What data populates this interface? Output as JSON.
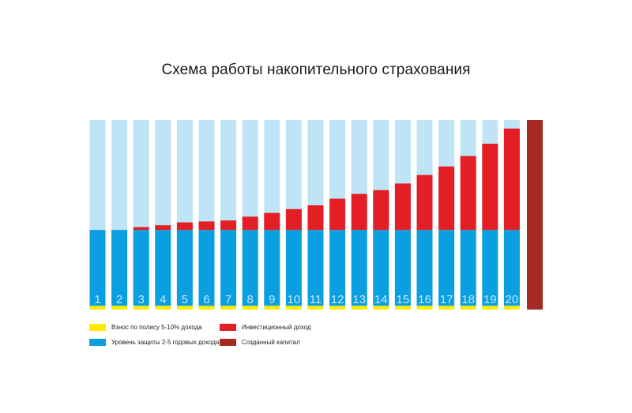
{
  "colors": {
    "contribution": "#ffed00",
    "protection": "#0a9fe0",
    "investment": "#e31e24",
    "capital": "#a52a22",
    "background_bar": "#bfe4f5",
    "year_label": "#c3e8f8"
  },
  "chart_data": {
    "type": "bar",
    "stacked": true,
    "title": "Схема работы накопительного страхования",
    "categories": [
      "1",
      "2",
      "3",
      "4",
      "5",
      "6",
      "7",
      "8",
      "9",
      "10",
      "11",
      "12",
      "13",
      "14",
      "15",
      "16",
      "17",
      "18",
      "19",
      "20"
    ],
    "total_level": 100,
    "series": [
      {
        "name": "Взнос по полису 5-10% дохода",
        "key": "contribution",
        "values": [
          2,
          2,
          2,
          2,
          2,
          2,
          2,
          2,
          2,
          2,
          2,
          2,
          2,
          2,
          2,
          2,
          2,
          2,
          2,
          2
        ]
      },
      {
        "name": "Уровень защиты 2-5 годовых дохода",
        "key": "protection",
        "values": [
          40,
          40,
          40,
          40,
          40,
          40,
          40,
          40,
          40,
          40,
          40,
          40,
          40,
          40,
          40,
          40,
          40,
          40,
          40,
          40
        ]
      },
      {
        "name": "Инвестиционный доход",
        "key": "investment",
        "values": [
          0,
          0,
          1.5,
          2.5,
          4,
          4.5,
          5,
          7,
          9,
          11,
          13,
          16.5,
          19,
          21,
          24.5,
          29,
          33.5,
          39,
          45.5,
          53.5
        ]
      }
    ],
    "capital": {
      "name": "Созданный капитал",
      "value": 100
    },
    "legend": [
      {
        "key": "contribution",
        "label": "Взнос по полису 5-10% дохода"
      },
      {
        "key": "investment",
        "label": "Инвестиционный доход"
      },
      {
        "key": "protection",
        "label": "Уровень защиты 2-5 годовых дохода"
      },
      {
        "key": "capital",
        "label": "Созданный капитал"
      }
    ],
    "legend_position": "bottom-left",
    "grid": false
  }
}
